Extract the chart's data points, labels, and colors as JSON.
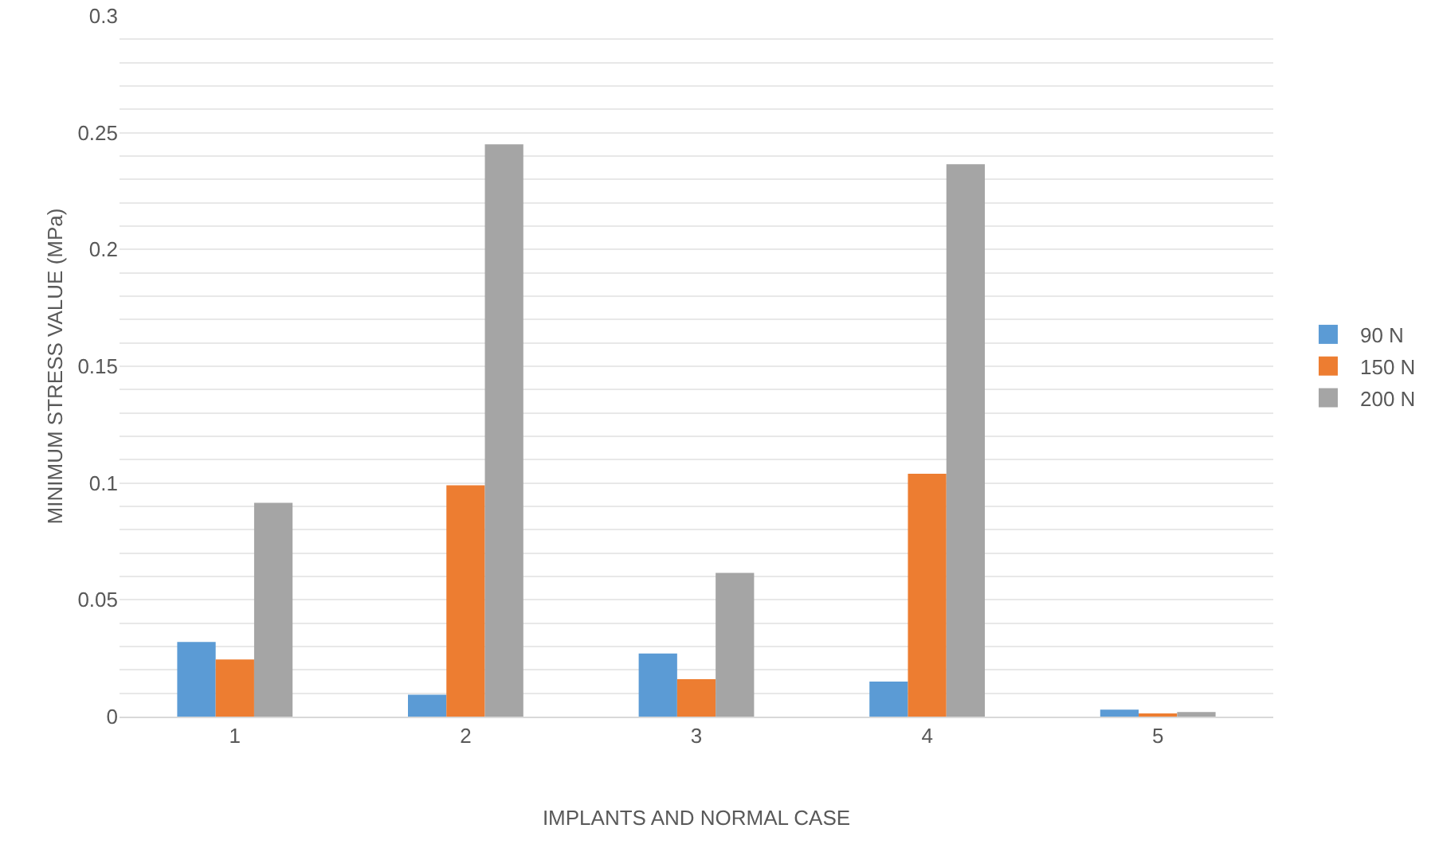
{
  "chart_data": {
    "type": "bar",
    "xlabel": "IMPLANTS AND NORMAL CASE",
    "ylabel": "MINIMUM STRESS VALUE (MPa)",
    "categories": [
      "1",
      "2",
      "3",
      "4",
      "5"
    ],
    "series": [
      {
        "name": "90 N",
        "color": "#5b9bd5",
        "values": [
          0.032,
          0.0094,
          0.027,
          0.015,
          0.003
        ]
      },
      {
        "name": "150 N",
        "color": "#ed7d31",
        "values": [
          0.0245,
          0.099,
          0.016,
          0.104,
          0.0007
        ]
      },
      {
        "name": "200 N",
        "color": "#a5a5a5",
        "values": [
          0.0915,
          0.245,
          0.0615,
          0.2365,
          0.002
        ]
      }
    ],
    "ylim": [
      0,
      0.3
    ],
    "yticks": [
      0,
      {
        "value": 0.01,
        "label": null
      },
      {
        "value": 0.02,
        "label": null
      },
      {
        "value": 0.03,
        "label": null
      },
      {
        "value": 0.04,
        "label": null
      },
      0.05,
      {
        "value": 0.06,
        "label": null
      },
      {
        "value": 0.07,
        "label": null
      },
      {
        "value": 0.08,
        "label": null
      },
      {
        "value": 0.09,
        "label": null
      },
      0.1,
      {
        "value": 0.11,
        "label": null
      },
      {
        "value": 0.12,
        "label": null
      },
      {
        "value": 0.13,
        "label": null
      },
      {
        "value": 0.14,
        "label": null
      },
      0.15,
      {
        "value": 0.16,
        "label": null
      },
      {
        "value": 0.17,
        "label": null
      },
      {
        "value": 0.18,
        "label": null
      },
      {
        "value": 0.19,
        "label": null
      },
      0.2,
      {
        "value": 0.21,
        "label": null
      },
      {
        "value": 0.22,
        "label": null
      },
      {
        "value": 0.23,
        "label": null
      },
      {
        "value": 0.24,
        "label": null
      },
      0.25,
      {
        "value": 0.26,
        "label": null
      },
      {
        "value": 0.27,
        "label": null
      },
      {
        "value": 0.28,
        "label": null
      },
      {
        "value": 0.29,
        "label": null
      },
      0.3
    ],
    "grid": true,
    "legend": "right"
  }
}
